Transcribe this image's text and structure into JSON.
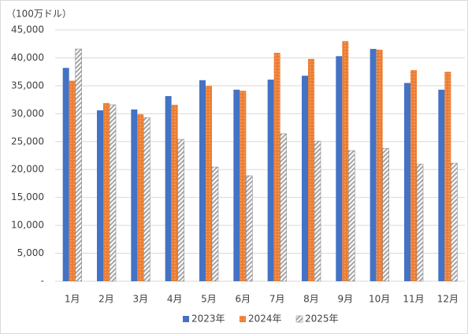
{
  "chart_data": {
    "type": "bar",
    "unit_label": "（100万ドル）",
    "categories": [
      "1月",
      "2月",
      "3月",
      "4月",
      "5月",
      "6月",
      "7月",
      "8月",
      "9月",
      "10月",
      "11月",
      "12月"
    ],
    "series": [
      {
        "name": "2023年",
        "color": "#4472c4",
        "values": [
          38200,
          30600,
          30750,
          33150,
          36000,
          34300,
          36100,
          36800,
          40300,
          41600,
          35500,
          34300
        ]
      },
      {
        "name": "2024年",
        "color": "#ed7d31",
        "pattern": "dots",
        "values": [
          35900,
          31900,
          29900,
          31600,
          35000,
          34100,
          40900,
          39800,
          43000,
          41450,
          37800,
          37500
        ]
      },
      {
        "name": "2025年",
        "color": "#a5a5a5",
        "pattern": "hatch",
        "values": [
          41600,
          31600,
          29300,
          25400,
          20450,
          18900,
          26400,
          25100,
          23400,
          23800,
          21000,
          21150
        ]
      }
    ],
    "ylim": [
      0,
      45000
    ],
    "yticks": [
      {
        "value": 0,
        "label": "-"
      },
      {
        "value": 5000,
        "label": "5,000"
      },
      {
        "value": 10000,
        "label": "10,000"
      },
      {
        "value": 15000,
        "label": "15,000"
      },
      {
        "value": 20000,
        "label": "20,000"
      },
      {
        "value": 25000,
        "label": "25,000"
      },
      {
        "value": 30000,
        "label": "30,000"
      },
      {
        "value": 35000,
        "label": "35,000"
      },
      {
        "value": 40000,
        "label": "40,000"
      },
      {
        "value": 45000,
        "label": "45,000"
      }
    ],
    "grid": true,
    "legend": "bottom"
  }
}
